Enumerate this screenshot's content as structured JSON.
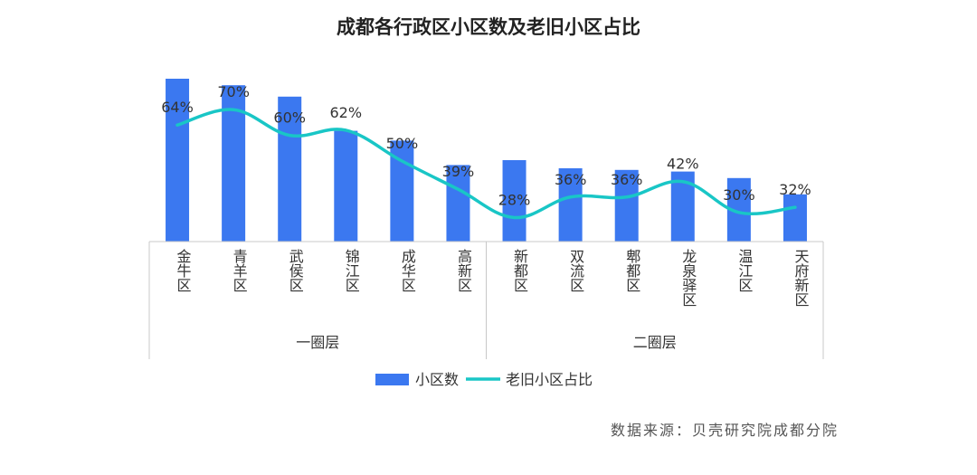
{
  "chart_data": {
    "type": "bar",
    "title": "成都各行政区小区数及老旧小区占比",
    "categories": [
      "金牛区",
      "青羊区",
      "武侯区",
      "锦江区",
      "成华区",
      "高新区",
      "新都区",
      "双流区",
      "郫都区",
      "龙泉驿区",
      "温江区",
      "天府新区"
    ],
    "groups": [
      {
        "label": "一圈层",
        "count": 6
      },
      {
        "label": "二圈层",
        "count": 6
      }
    ],
    "series": [
      {
        "name": "小区数",
        "type": "bar",
        "values": [
          100,
          96,
          89,
          68,
          62,
          47,
          50,
          45,
          44,
          43,
          39,
          29
        ]
      },
      {
        "name": "老旧小区占比",
        "type": "line",
        "axis": "secondary",
        "values": [
          0.64,
          0.7,
          0.6,
          0.62,
          0.5,
          0.39,
          0.28,
          0.36,
          0.36,
          0.42,
          0.3,
          0.32
        ],
        "labels": [
          "64%",
          "70%",
          "60%",
          "62%",
          "50%",
          "39%",
          "28%",
          "36%",
          "36%",
          "42%",
          "30%",
          "32%"
        ]
      }
    ],
    "ylim": [
      0,
      100
    ],
    "y2lim": [
      0,
      1
    ],
    "colors": {
      "bar": "#3B78F0",
      "line": "#19C6C6",
      "axis": "#C8C8C8",
      "title": "#222222",
      "label": "#333333",
      "source": "#555555"
    },
    "legend_position": "bottom"
  },
  "source": "数据来源：贝壳研究院成都分院"
}
